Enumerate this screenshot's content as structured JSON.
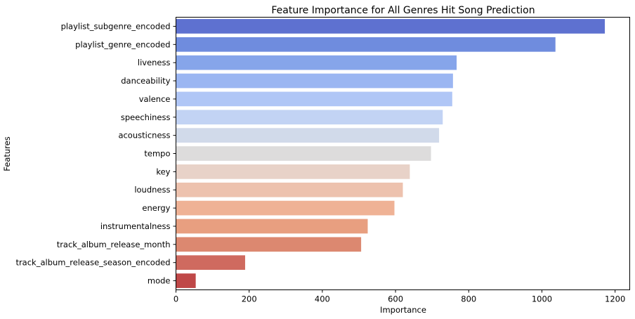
{
  "chart_data": {
    "type": "bar",
    "orientation": "horizontal",
    "title": "Feature Importance for All Genres Hit Song Prediction",
    "xlabel": "Importance",
    "ylabel": "Features",
    "xlim": [
      0,
      1240
    ],
    "xticks": [
      0,
      200,
      400,
      600,
      800,
      1000,
      1200
    ],
    "grid": false,
    "categories": [
      "playlist_subgenre_encoded",
      "playlist_genre_encoded",
      "liveness",
      "danceability",
      "valence",
      "speechiness",
      "acousticness",
      "tempo",
      "key",
      "loudness",
      "energy",
      "instrumentalness",
      "track_album_release_month",
      "track_album_release_season_encoded",
      "mode"
    ],
    "values": [
      1172,
      1037,
      767,
      757,
      755,
      729,
      719,
      697,
      639,
      620,
      597,
      524,
      506,
      189,
      54
    ],
    "colors": [
      "#5e71d0",
      "#6f8cde",
      "#86a5ea",
      "#9bb6f2",
      "#b0c6f6",
      "#c2d3f4",
      "#d1daea",
      "#dddcdc",
      "#e8d2c8",
      "#edc2ae",
      "#efb295",
      "#e89f80",
      "#dc8870",
      "#cf6a5f",
      "#bf4848"
    ]
  }
}
